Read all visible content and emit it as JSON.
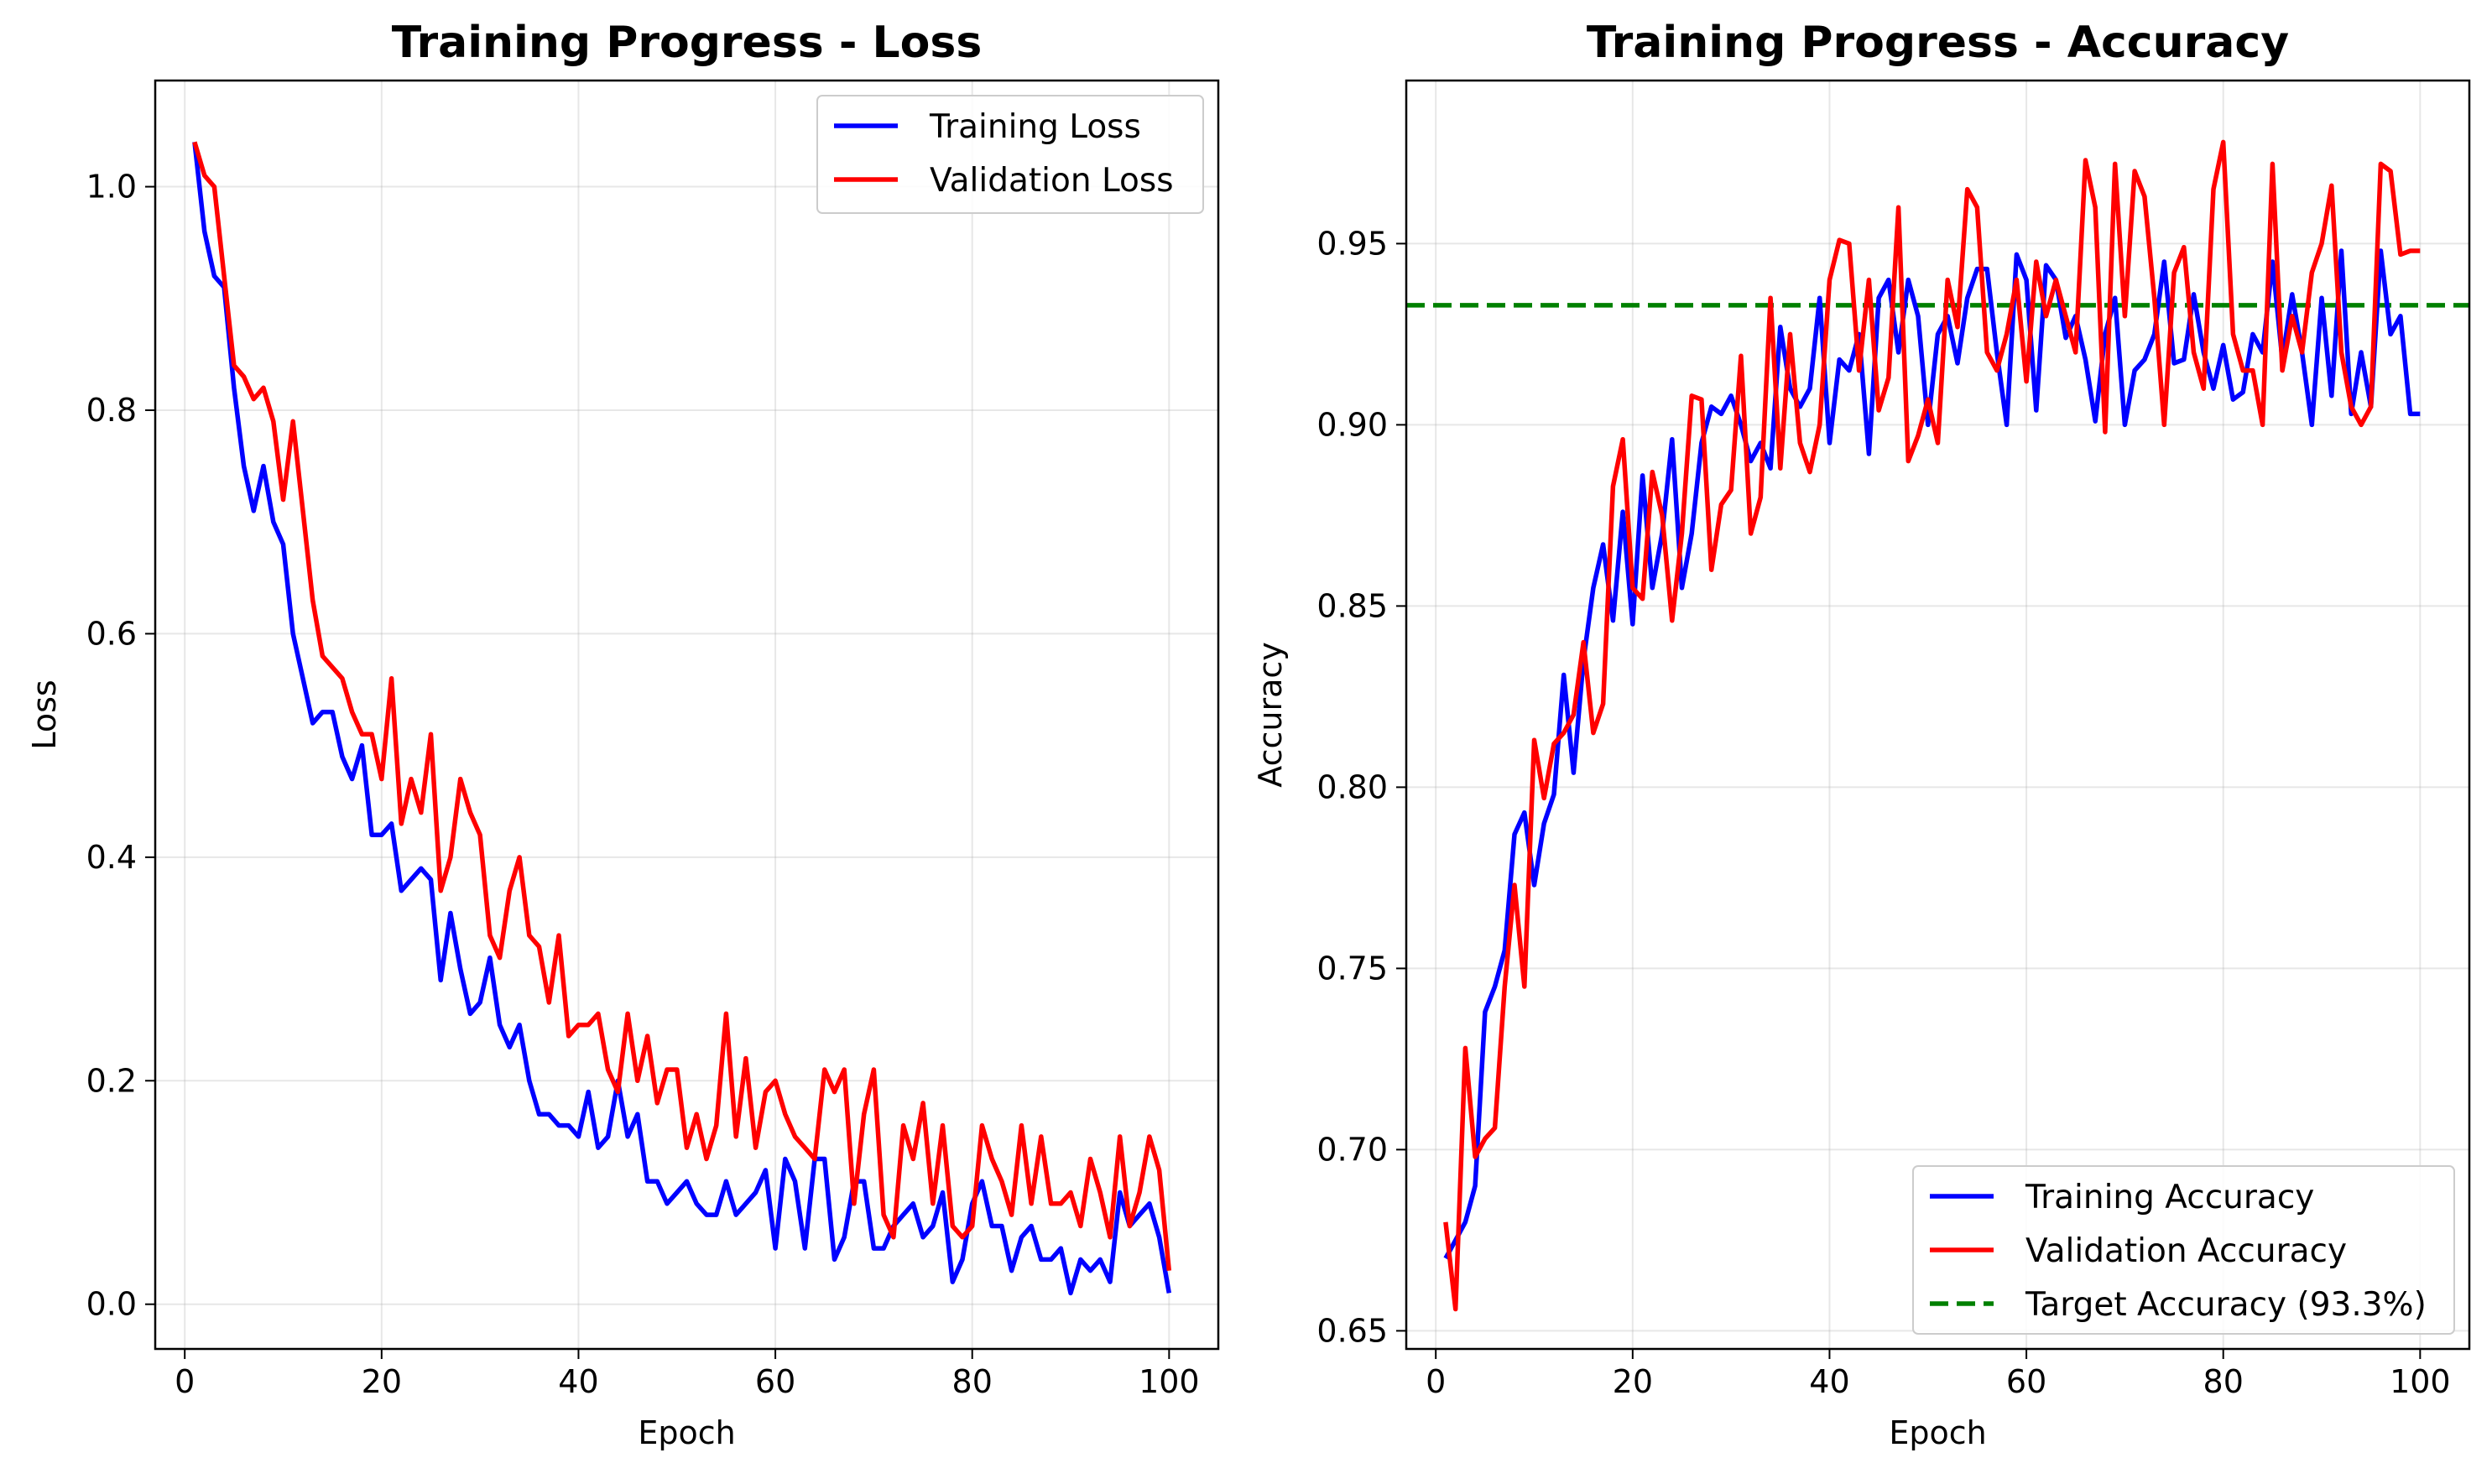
{
  "chart_data": [
    {
      "type": "line",
      "title": "Training Progress - Loss",
      "xlabel": "Epoch",
      "ylabel": "Loss",
      "xlim": [
        -3,
        105
      ],
      "ylim": [
        -0.04,
        1.095
      ],
      "xticks": [
        0,
        20,
        40,
        60,
        80,
        100
      ],
      "yticks": [
        0.0,
        0.2,
        0.4,
        0.6,
        0.8,
        1.0
      ],
      "ytick_labels": [
        "0.0",
        "0.2",
        "0.4",
        "0.6",
        "0.8",
        "1.0"
      ],
      "grid": true,
      "legend_position": "top-right",
      "series": [
        {
          "name": "Training Loss",
          "color": "#0000ff",
          "x": [
            1,
            2,
            3,
            4,
            5,
            6,
            7,
            8,
            9,
            10,
            11,
            12,
            13,
            14,
            15,
            16,
            17,
            18,
            19,
            20,
            21,
            22,
            23,
            24,
            25,
            26,
            27,
            28,
            29,
            30,
            31,
            32,
            33,
            34,
            35,
            36,
            37,
            38,
            39,
            40,
            41,
            42,
            43,
            44,
            45,
            46,
            47,
            48,
            49,
            50,
            51,
            52,
            53,
            54,
            55,
            56,
            57,
            58,
            59,
            60,
            61,
            62,
            63,
            64,
            65,
            66,
            67,
            68,
            69,
            70,
            71,
            72,
            73,
            74,
            75,
            76,
            77,
            78,
            79,
            80,
            81,
            82,
            83,
            84,
            85,
            86,
            87,
            88,
            89,
            90,
            91,
            92,
            93,
            94,
            95,
            96,
            97,
            98,
            99,
            100
          ],
          "values": [
            1.04,
            0.96,
            0.92,
            0.91,
            0.82,
            0.75,
            0.71,
            0.75,
            0.7,
            0.68,
            0.6,
            0.56,
            0.52,
            0.53,
            0.53,
            0.49,
            0.47,
            0.5,
            0.42,
            0.42,
            0.43,
            0.37,
            0.38,
            0.39,
            0.38,
            0.29,
            0.35,
            0.3,
            0.26,
            0.27,
            0.31,
            0.25,
            0.23,
            0.25,
            0.2,
            0.17,
            0.17,
            0.16,
            0.16,
            0.15,
            0.19,
            0.14,
            0.15,
            0.2,
            0.15,
            0.17,
            0.11,
            0.11,
            0.09,
            0.1,
            0.11,
            0.09,
            0.08,
            0.08,
            0.11,
            0.08,
            0.09,
            0.1,
            0.12,
            0.05,
            0.13,
            0.11,
            0.05,
            0.13,
            0.13,
            0.04,
            0.06,
            0.11,
            0.11,
            0.05,
            0.05,
            0.07,
            0.08,
            0.09,
            0.06,
            0.07,
            0.1,
            0.02,
            0.04,
            0.09,
            0.11,
            0.07,
            0.07,
            0.03,
            0.06,
            0.07,
            0.04,
            0.04,
            0.05,
            0.01,
            0.04,
            0.03,
            0.04,
            0.02,
            0.1,
            0.07,
            0.08,
            0.09,
            0.06,
            0.01
          ]
        },
        {
          "name": "Validation Loss",
          "color": "#ff0000",
          "x": [
            1,
            2,
            3,
            4,
            5,
            6,
            7,
            8,
            9,
            10,
            11,
            12,
            13,
            14,
            15,
            16,
            17,
            18,
            19,
            20,
            21,
            22,
            23,
            24,
            25,
            26,
            27,
            28,
            29,
            30,
            31,
            32,
            33,
            34,
            35,
            36,
            37,
            38,
            39,
            40,
            41,
            42,
            43,
            44,
            45,
            46,
            47,
            48,
            49,
            50,
            51,
            52,
            53,
            54,
            55,
            56,
            57,
            58,
            59,
            60,
            61,
            62,
            63,
            64,
            65,
            66,
            67,
            68,
            69,
            70,
            71,
            72,
            73,
            74,
            75,
            76,
            77,
            78,
            79,
            80,
            81,
            82,
            83,
            84,
            85,
            86,
            87,
            88,
            89,
            90,
            91,
            92,
            93,
            94,
            95,
            96,
            97,
            98,
            99,
            100
          ],
          "values": [
            1.04,
            1.01,
            1.0,
            0.92,
            0.84,
            0.83,
            0.81,
            0.82,
            0.79,
            0.72,
            0.79,
            0.71,
            0.63,
            0.58,
            0.57,
            0.56,
            0.53,
            0.51,
            0.51,
            0.47,
            0.56,
            0.43,
            0.47,
            0.44,
            0.51,
            0.37,
            0.4,
            0.47,
            0.44,
            0.42,
            0.33,
            0.31,
            0.37,
            0.4,
            0.33,
            0.32,
            0.27,
            0.33,
            0.24,
            0.25,
            0.25,
            0.26,
            0.21,
            0.19,
            0.26,
            0.2,
            0.24,
            0.18,
            0.21,
            0.21,
            0.14,
            0.17,
            0.13,
            0.16,
            0.26,
            0.15,
            0.22,
            0.14,
            0.19,
            0.2,
            0.17,
            0.15,
            0.14,
            0.13,
            0.21,
            0.19,
            0.21,
            0.09,
            0.17,
            0.21,
            0.08,
            0.06,
            0.16,
            0.13,
            0.18,
            0.09,
            0.16,
            0.07,
            0.06,
            0.07,
            0.16,
            0.13,
            0.11,
            0.08,
            0.16,
            0.09,
            0.15,
            0.09,
            0.09,
            0.1,
            0.07,
            0.13,
            0.1,
            0.06,
            0.15,
            0.07,
            0.1,
            0.15,
            0.12,
            0.03
          ]
        }
      ]
    },
    {
      "type": "line",
      "title": "Training Progress - Accuracy",
      "xlabel": "Epoch",
      "ylabel": "Accuracy",
      "xlim": [
        -3,
        105
      ],
      "ylim": [
        0.645,
        0.995
      ],
      "xticks": [
        0,
        20,
        40,
        60,
        80,
        100
      ],
      "yticks": [
        0.65,
        0.7,
        0.75,
        0.8,
        0.85,
        0.9,
        0.95
      ],
      "ytick_labels": [
        "0.65",
        "0.70",
        "0.75",
        "0.80",
        "0.85",
        "0.90",
        "0.95"
      ],
      "grid": true,
      "legend_position": "bottom-right",
      "reference_line": {
        "name": "Target Accuracy (93.3%)",
        "value": 0.933,
        "color": "#008000",
        "style": "dashed"
      },
      "series": [
        {
          "name": "Training Accuracy",
          "color": "#0000ff",
          "x": [
            1,
            2,
            3,
            4,
            5,
            6,
            7,
            8,
            9,
            10,
            11,
            12,
            13,
            14,
            15,
            16,
            17,
            18,
            19,
            20,
            21,
            22,
            23,
            24,
            25,
            26,
            27,
            28,
            29,
            30,
            31,
            32,
            33,
            34,
            35,
            36,
            37,
            38,
            39,
            40,
            41,
            42,
            43,
            44,
            45,
            46,
            47,
            48,
            49,
            50,
            51,
            52,
            53,
            54,
            55,
            56,
            57,
            58,
            59,
            60,
            61,
            62,
            63,
            64,
            65,
            66,
            67,
            68,
            69,
            70,
            71,
            72,
            73,
            74,
            75,
            76,
            77,
            78,
            79,
            80,
            81,
            82,
            83,
            84,
            85,
            86,
            87,
            88,
            89,
            90,
            91,
            92,
            93,
            94,
            95,
            96,
            97,
            98,
            99,
            100
          ],
          "values": [
            0.67,
            0.675,
            0.68,
            0.69,
            0.738,
            0.745,
            0.755,
            0.787,
            0.793,
            0.773,
            0.79,
            0.798,
            0.831,
            0.804,
            0.835,
            0.855,
            0.867,
            0.846,
            0.876,
            0.845,
            0.886,
            0.855,
            0.87,
            0.896,
            0.855,
            0.87,
            0.895,
            0.905,
            0.903,
            0.908,
            0.9,
            0.89,
            0.895,
            0.888,
            0.927,
            0.91,
            0.905,
            0.91,
            0.935,
            0.895,
            0.918,
            0.915,
            0.925,
            0.892,
            0.935,
            0.94,
            0.92,
            0.94,
            0.93,
            0.9,
            0.925,
            0.93,
            0.917,
            0.935,
            0.943,
            0.943,
            0.92,
            0.9,
            0.947,
            0.94,
            0.904,
            0.944,
            0.94,
            0.924,
            0.93,
            0.918,
            0.901,
            0.925,
            0.935,
            0.9,
            0.915,
            0.918,
            0.925,
            0.945,
            0.917,
            0.918,
            0.936,
            0.92,
            0.91,
            0.922,
            0.907,
            0.909,
            0.925,
            0.92,
            0.945,
            0.918,
            0.936,
            0.92,
            0.9,
            0.935,
            0.908,
            0.948,
            0.903,
            0.92,
            0.905,
            0.948,
            0.925,
            0.93,
            0.903,
            0.903
          ]
        },
        {
          "name": "Validation Accuracy",
          "color": "#ff0000",
          "x": [
            1,
            2,
            3,
            4,
            5,
            6,
            7,
            8,
            9,
            10,
            11,
            12,
            13,
            14,
            15,
            16,
            17,
            18,
            19,
            20,
            21,
            22,
            23,
            24,
            25,
            26,
            27,
            28,
            29,
            30,
            31,
            32,
            33,
            34,
            35,
            36,
            37,
            38,
            39,
            40,
            41,
            42,
            43,
            44,
            45,
            46,
            47,
            48,
            49,
            50,
            51,
            52,
            53,
            54,
            55,
            56,
            57,
            58,
            59,
            60,
            61,
            62,
            63,
            64,
            65,
            66,
            67,
            68,
            69,
            70,
            71,
            72,
            73,
            74,
            75,
            76,
            77,
            78,
            79,
            80,
            81,
            82,
            83,
            84,
            85,
            86,
            87,
            88,
            89,
            90,
            91,
            92,
            93,
            94,
            95,
            96,
            97,
            98,
            99,
            100
          ],
          "values": [
            0.68,
            0.656,
            0.728,
            0.698,
            0.703,
            0.706,
            0.745,
            0.773,
            0.745,
            0.813,
            0.797,
            0.812,
            0.815,
            0.82,
            0.84,
            0.815,
            0.823,
            0.883,
            0.896,
            0.855,
            0.852,
            0.887,
            0.875,
            0.846,
            0.87,
            0.908,
            0.907,
            0.86,
            0.878,
            0.882,
            0.919,
            0.87,
            0.88,
            0.935,
            0.888,
            0.925,
            0.895,
            0.887,
            0.9,
            0.94,
            0.951,
            0.95,
            0.915,
            0.94,
            0.904,
            0.913,
            0.96,
            0.89,
            0.897,
            0.907,
            0.895,
            0.94,
            0.927,
            0.965,
            0.96,
            0.92,
            0.915,
            0.925,
            0.94,
            0.912,
            0.945,
            0.93,
            0.94,
            0.93,
            0.92,
            0.973,
            0.96,
            0.898,
            0.972,
            0.93,
            0.97,
            0.963,
            0.935,
            0.9,
            0.942,
            0.949,
            0.92,
            0.91,
            0.965,
            0.978,
            0.925,
            0.915,
            0.915,
            0.9,
            0.972,
            0.915,
            0.93,
            0.92,
            0.942,
            0.95,
            0.966,
            0.92,
            0.905,
            0.9,
            0.905,
            0.972,
            0.97,
            0.947,
            0.948,
            0.948
          ]
        }
      ]
    }
  ]
}
